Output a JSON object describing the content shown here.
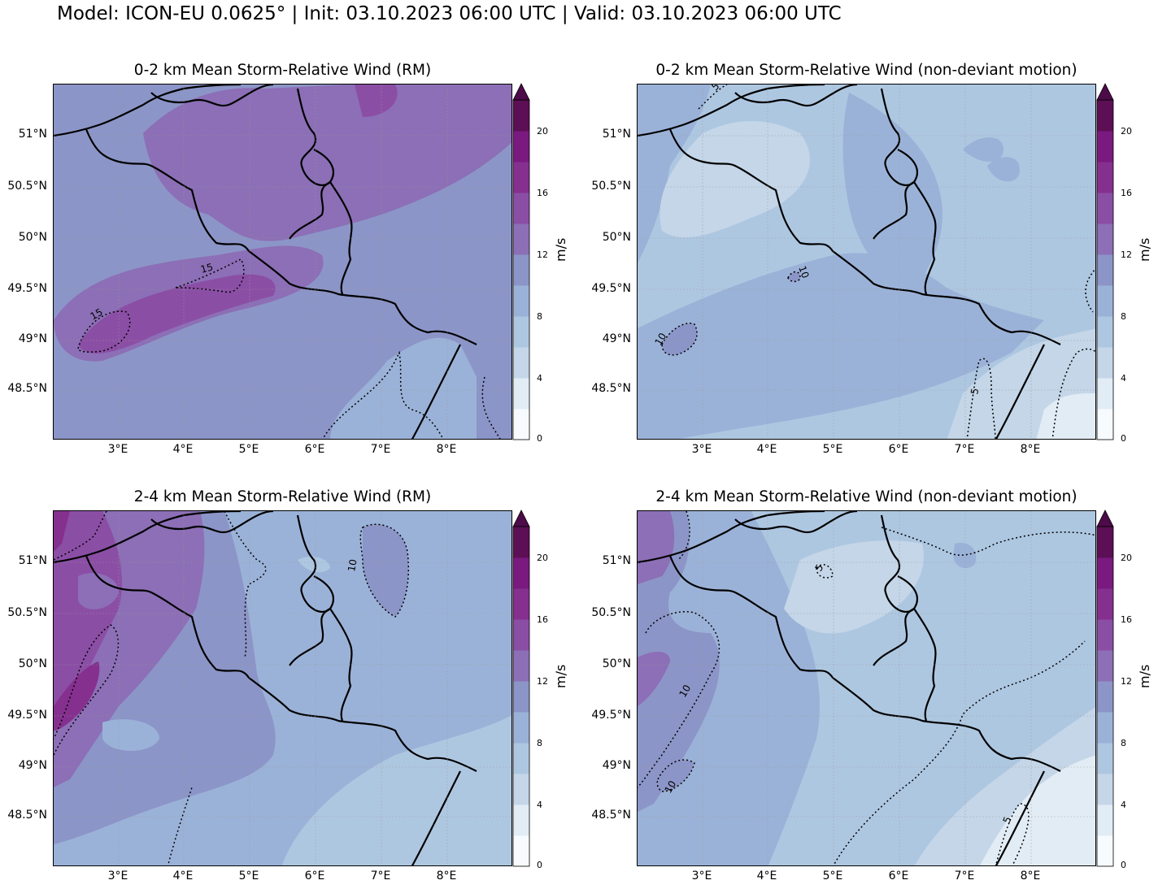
{
  "suptitle": "Model: ICON-EU 0.0625° | Init: 03.10.2023 06:00 UTC | Valid: 03.10.2023 06:00 UTC",
  "units": "m/s",
  "lat_ticks": [
    "51°N",
    "50.5°N",
    "50°N",
    "49.5°N",
    "49°N",
    "48.5°N"
  ],
  "lon_ticks": [
    "3°E",
    "4°E",
    "5°E",
    "6°E",
    "7°E",
    "8°E"
  ],
  "colorbar_ticks": [
    "0",
    "4",
    "8",
    "12",
    "16",
    "20"
  ],
  "colorbar_colors": [
    "#f7fbfd",
    "#e2ecf5",
    "#c4d6e8",
    "#aec7e1",
    "#9bb2d8",
    "#8c95c7",
    "#8c6fb6",
    "#8b4ea5",
    "#85308f",
    "#7a1a80",
    "#5d0f55",
    "#4d0b4a"
  ],
  "panels": [
    {
      "title": "0-2 km Mean Storm-Relative Wind (RM)",
      "contour_labels": [
        "15",
        "15"
      ]
    },
    {
      "title": "0-2 km Mean Storm-Relative Wind (non-deviant motion)",
      "contour_labels": [
        "10",
        "10",
        "5",
        "5"
      ]
    },
    {
      "title": "2-4 km Mean Storm-Relative Wind (RM)",
      "contour_labels": [
        "10"
      ]
    },
    {
      "title": "2-4 km Mean Storm-Relative Wind (non-deviant motion)",
      "contour_labels": [
        "5",
        "10",
        "10",
        "5"
      ]
    }
  ]
}
